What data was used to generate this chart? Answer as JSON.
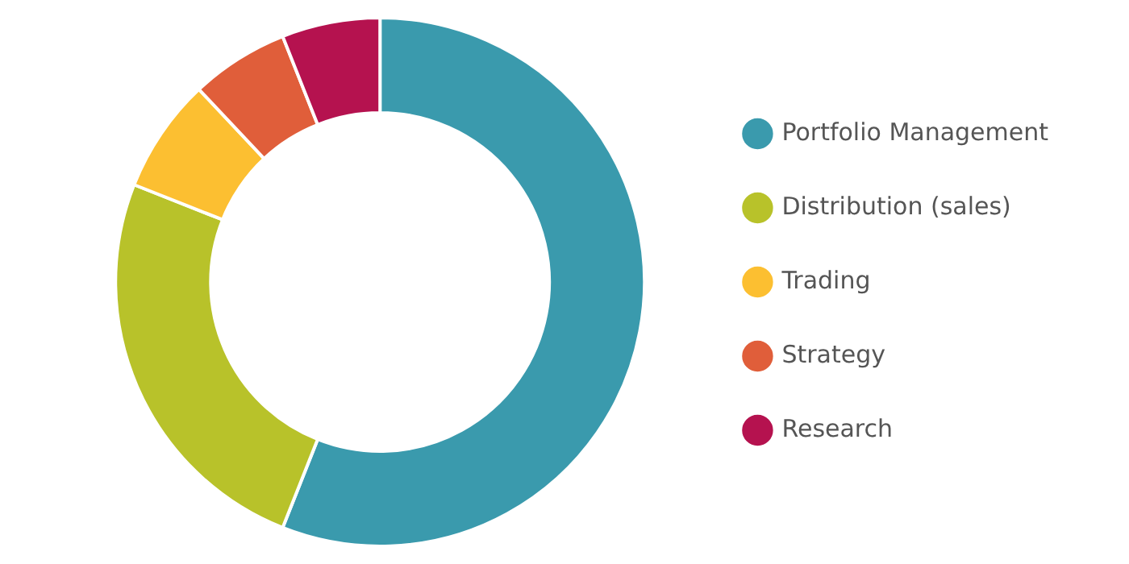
{
  "chart_data": {
    "type": "donut",
    "categories": [
      "Portfolio Management",
      "Distribution (sales)",
      "Trading",
      "Strategy",
      "Research"
    ],
    "values": [
      56,
      25,
      7,
      6,
      6
    ],
    "colors": [
      "#3a9aad",
      "#b8c22a",
      "#fcbf31",
      "#e05e3a",
      "#b5124f"
    ],
    "legend": "right"
  }
}
